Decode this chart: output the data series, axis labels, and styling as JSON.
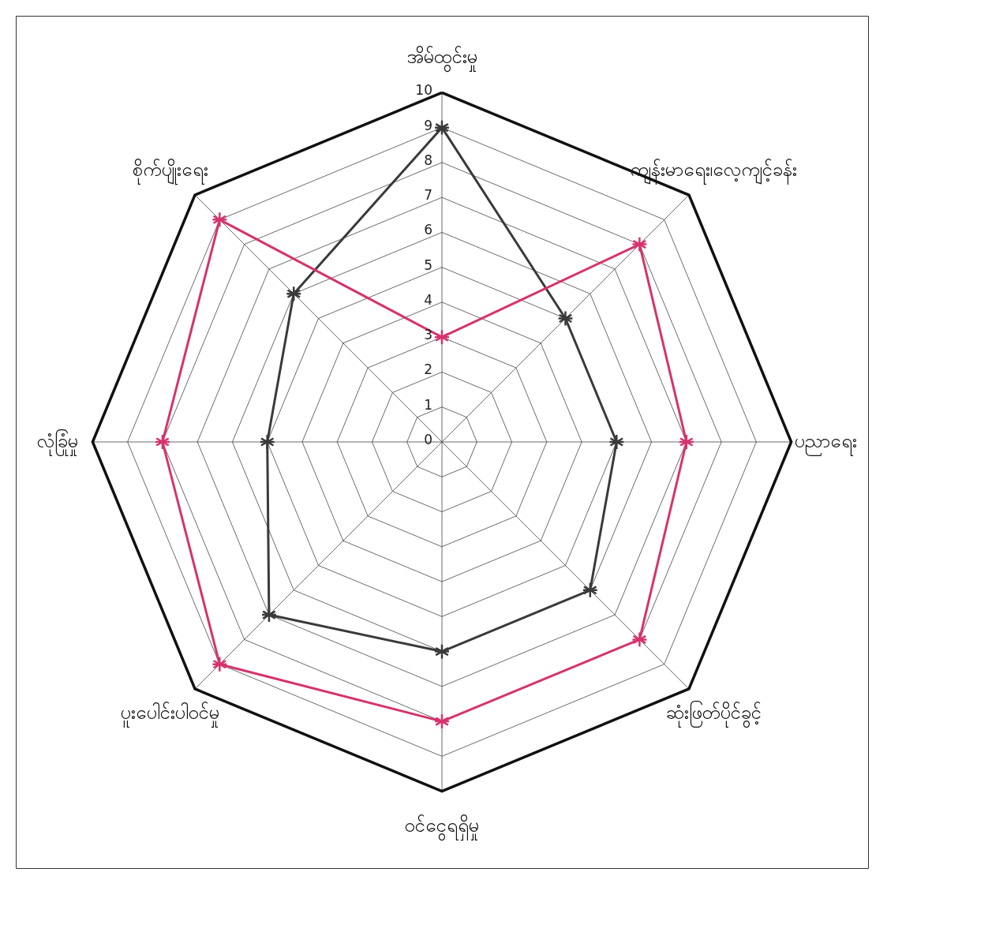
{
  "chart_data": {
    "type": "radar",
    "categories": [
      "အိမ်ထွင်းမှု",
      "ကျန်းမာရေး၊လေ့ကျင့်ခန်း",
      "ပညာရေး",
      "ဆုံးဖြတ်ပိုင်ခွင့်",
      "ဝင်ငွေရရှိမှု",
      "ပူးပေါင်းပါဝင်မှု",
      "လုံခြုံမှု",
      "စိုက်ပျိုးရေး"
    ],
    "series": [
      {
        "color": "#3a3a3a",
        "values": [
          9,
          5,
          5,
          6,
          6,
          7,
          5,
          6
        ]
      },
      {
        "color": "#d6336c",
        "values": [
          3,
          8,
          7,
          8,
          8,
          9,
          8,
          9
        ]
      }
    ],
    "ylim": [
      0,
      10
    ],
    "yticks": [
      0,
      1,
      2,
      3,
      4,
      5,
      6,
      7,
      8,
      9,
      10
    ],
    "grid": true,
    "marker": "star",
    "line_style": "solid"
  }
}
